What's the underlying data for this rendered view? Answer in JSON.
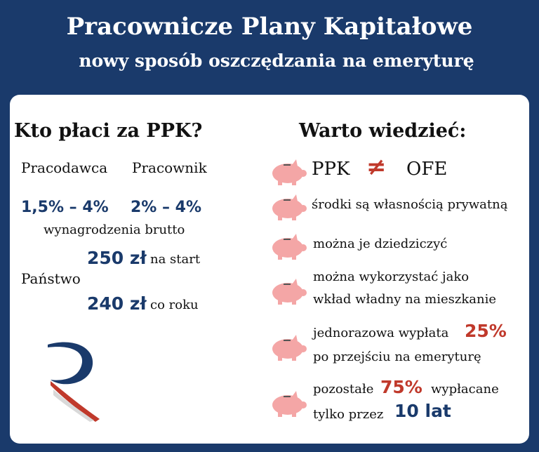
{
  "header": {
    "title": "Pracownicze Plany Kapitałowe",
    "subtitle": "nowy sposób oszczędzania na emeryturę"
  },
  "left": {
    "heading": "Kto płaci za PPK?",
    "employer_label": "Pracodawca",
    "employee_label": "Pracownik",
    "employer_value": "1,5% – 4%",
    "employee_value": "2% – 4%",
    "salary_note": "wynagrodzenia brutto",
    "start_amount": "250 zł",
    "start_note": "na start",
    "state_label": "Państwo",
    "yearly_amount": "240 zł",
    "yearly_note": "co roku"
  },
  "right": {
    "heading": "Warto wiedzieć:",
    "ppk": "PPK",
    "neq": "≠",
    "ofe": "OFE",
    "fact1": "środki są własnością prywatną",
    "fact2": "można je dziedziczyć",
    "fact3_line1": "można wykorzystać jako",
    "fact3_line2": "wkład władny na mieszkanie",
    "fact4_line1": "jednorazowa wypłata",
    "fact4_pct": "25%",
    "fact4_line2": "po przejściu na emeryturę",
    "fact5_pre": "pozostałe",
    "fact5_pct": "75%",
    "fact5_post": "wypłacane",
    "fact5_line2": "tylko przez",
    "fact5_years": "10 lat"
  },
  "colors": {
    "navy": "#1a3a6b",
    "red": "#c0392b",
    "pig": "#f4a6a6"
  },
  "icons": [
    "piggy-bank-icon",
    "logo-r"
  ]
}
